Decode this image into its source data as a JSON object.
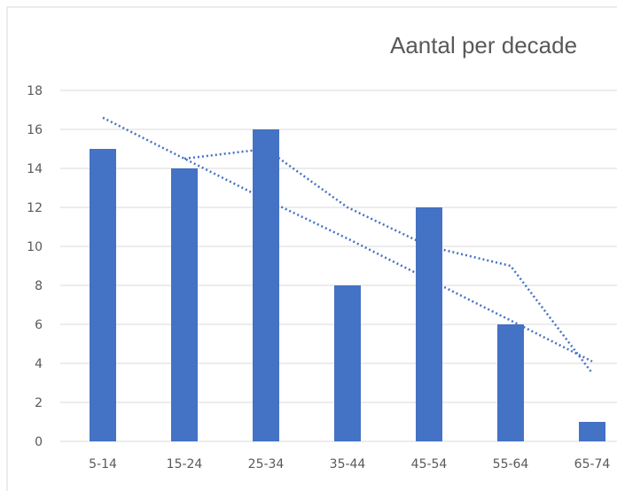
{
  "chart_data": {
    "type": "bar",
    "title": "Aantal per decade",
    "categories": [
      "5-14",
      "15-24",
      "25-34",
      "35-44",
      "45-54",
      "55-64",
      "65-74"
    ],
    "series": [
      {
        "values": [
          15,
          14,
          16,
          8,
          12,
          6,
          1
        ]
      }
    ],
    "trendlines": [
      {
        "kind": "linear",
        "values": [
          16.6,
          14.5,
          12.4,
          10.4,
          8.3,
          6.2,
          4.1
        ]
      },
      {
        "kind": "moving-average",
        "values": [
          null,
          14.5,
          15,
          12,
          10,
          9,
          3.5
        ]
      }
    ],
    "ylim": [
      0,
      18
    ],
    "yticks": [
      0,
      2,
      4,
      6,
      8,
      10,
      12,
      14,
      16,
      18
    ],
    "grid": true,
    "legend": "none",
    "colors": {
      "bar": "#4472C4",
      "trend": "#4472C4",
      "grid": "#D9D9D9",
      "text": "#595959"
    }
  }
}
